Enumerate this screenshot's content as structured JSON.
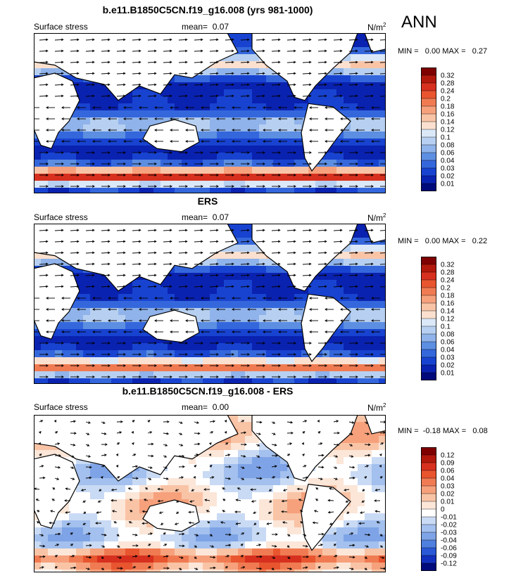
{
  "season": "ANN",
  "units": "N/m",
  "units_sup": "2",
  "panels": [
    {
      "title": "b.e11.B1850C5CN.f19_g16.008 (yrs 981-1000)",
      "left_label": "Surface stress",
      "mean_label": "mean=",
      "mean_value": "0.07",
      "stats": "MIN =   0.00 MAX =   0.27"
    },
    {
      "title": "ERS",
      "left_label": "Surface stress",
      "mean_label": "mean=",
      "mean_value": "0.07",
      "stats": "MIN =   0.00 MAX =   0.22"
    },
    {
      "title": "b.e11.B1850C5CN.f19_g16.008 - ERS",
      "left_label": "Surface stress",
      "mean_label": "mean=",
      "mean_value": "0.00",
      "stats": "MIN =  -0.18 MAX =   0.08"
    }
  ],
  "chart_data": [
    {
      "type": "heatmap",
      "title": "b.e11.B1850C5CN.f19_g16.008 (yrs 981-1000)",
      "field": "Surface stress",
      "units": "N/m2",
      "mean": 0.07,
      "min": 0.0,
      "max": 0.27,
      "colorbar_levels": [
        "0.32",
        "0.28",
        "0.24",
        "0.2",
        "0.18",
        "0.16",
        "0.14",
        "0.12",
        "0.1",
        "0.08",
        "0.06",
        "0.04",
        "0.03",
        "0.02",
        "0.01"
      ],
      "colorbar_colors": [
        "#7f0000",
        "#b2180b",
        "#d7301f",
        "#e8552f",
        "#f07b52",
        "#f6a17c",
        "#f9c4a6",
        "#fbe0cf",
        "#dbe8f8",
        "#b7d0f1",
        "#8fb3ea",
        "#5c8ee2",
        "#3567dc",
        "#1843d0",
        "#0a22b0",
        "#000a7a"
      ],
      "colorbar_position": "right",
      "overlay": "wind stress vectors"
    },
    {
      "type": "heatmap",
      "title": "ERS",
      "field": "Surface stress",
      "units": "N/m2",
      "mean": 0.07,
      "min": 0.0,
      "max": 0.22,
      "colorbar_levels": [
        "0.32",
        "0.28",
        "0.24",
        "0.2",
        "0.18",
        "0.16",
        "0.14",
        "0.12",
        "0.1",
        "0.08",
        "0.06",
        "0.04",
        "0.03",
        "0.02",
        "0.01"
      ],
      "colorbar_colors": [
        "#7f0000",
        "#b2180b",
        "#d7301f",
        "#e8552f",
        "#f07b52",
        "#f6a17c",
        "#f9c4a6",
        "#fbe0cf",
        "#dbe8f8",
        "#b7d0f1",
        "#8fb3ea",
        "#5c8ee2",
        "#3567dc",
        "#1843d0",
        "#0a22b0",
        "#000a7a"
      ],
      "colorbar_position": "right",
      "overlay": "wind stress vectors"
    },
    {
      "type": "heatmap",
      "title": "b.e11.B1850C5CN.f19_g16.008 - ERS",
      "field": "Surface stress",
      "units": "N/m2",
      "mean": 0.0,
      "min": -0.18,
      "max": 0.08,
      "colorbar_levels": [
        "0.12",
        "0.09",
        "0.06",
        "0.04",
        "0.03",
        "0.02",
        "0.01",
        "0",
        "-0.01",
        "-0.02",
        "-0.03",
        "-0.04",
        "-0.06",
        "-0.09",
        "-0.12"
      ],
      "colorbar_colors": [
        "#7f0000",
        "#b2180b",
        "#d7301f",
        "#e8552f",
        "#f07b52",
        "#f6a17c",
        "#f9c4a6",
        "#fbe6d8",
        "#ffffff",
        "#c9daf4",
        "#a3c0ee",
        "#7ea3e6",
        "#4f7fdf",
        "#2a58d6",
        "#1230bd",
        "#000a7a"
      ],
      "colorbar_position": "right",
      "overlay": "wind stress difference vectors"
    }
  ]
}
